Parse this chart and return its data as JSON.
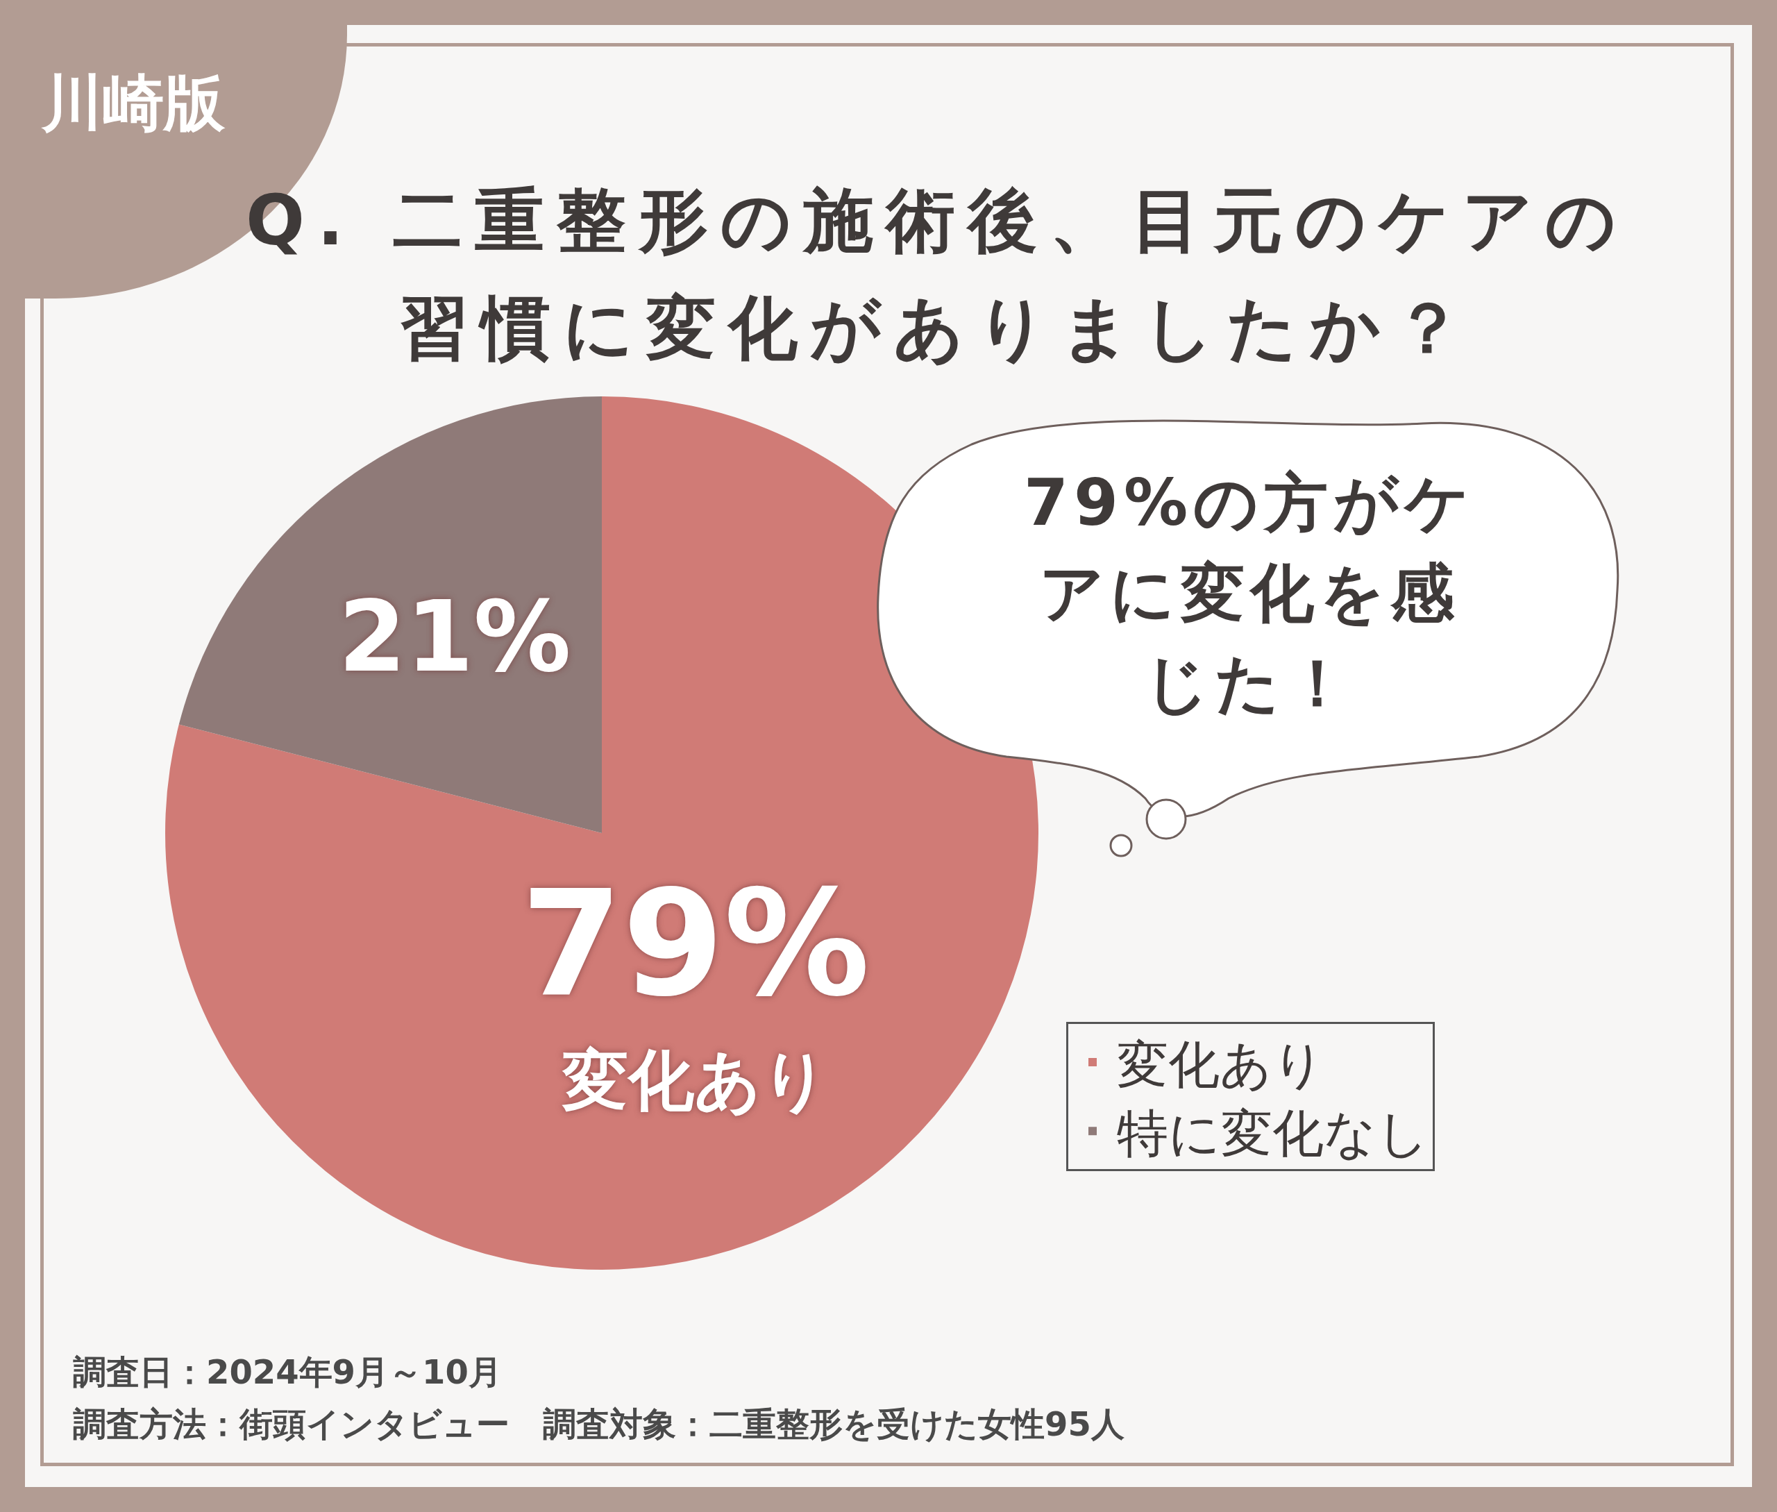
{
  "chart_data": {
    "type": "pie",
    "title": "Q. 二重整形の施術後、目元のケアの習慣に変化がありましたか？",
    "categories": [
      "変化あり",
      "特に変化なし"
    ],
    "values": [
      79,
      21
    ],
    "colors": [
      "#d07b76",
      "#8f7a78"
    ],
    "value_labels": [
      "79%",
      "21%"
    ],
    "legend": "bottom right",
    "annotations": [
      "川崎版",
      "変化あり",
      "79%の方がケアに変化を感じた！",
      "調査日：2024年9月～10月",
      "調査方法：街頭インタビュー　調査対象：二重整形を受けた女性95人"
    ]
  }
}
